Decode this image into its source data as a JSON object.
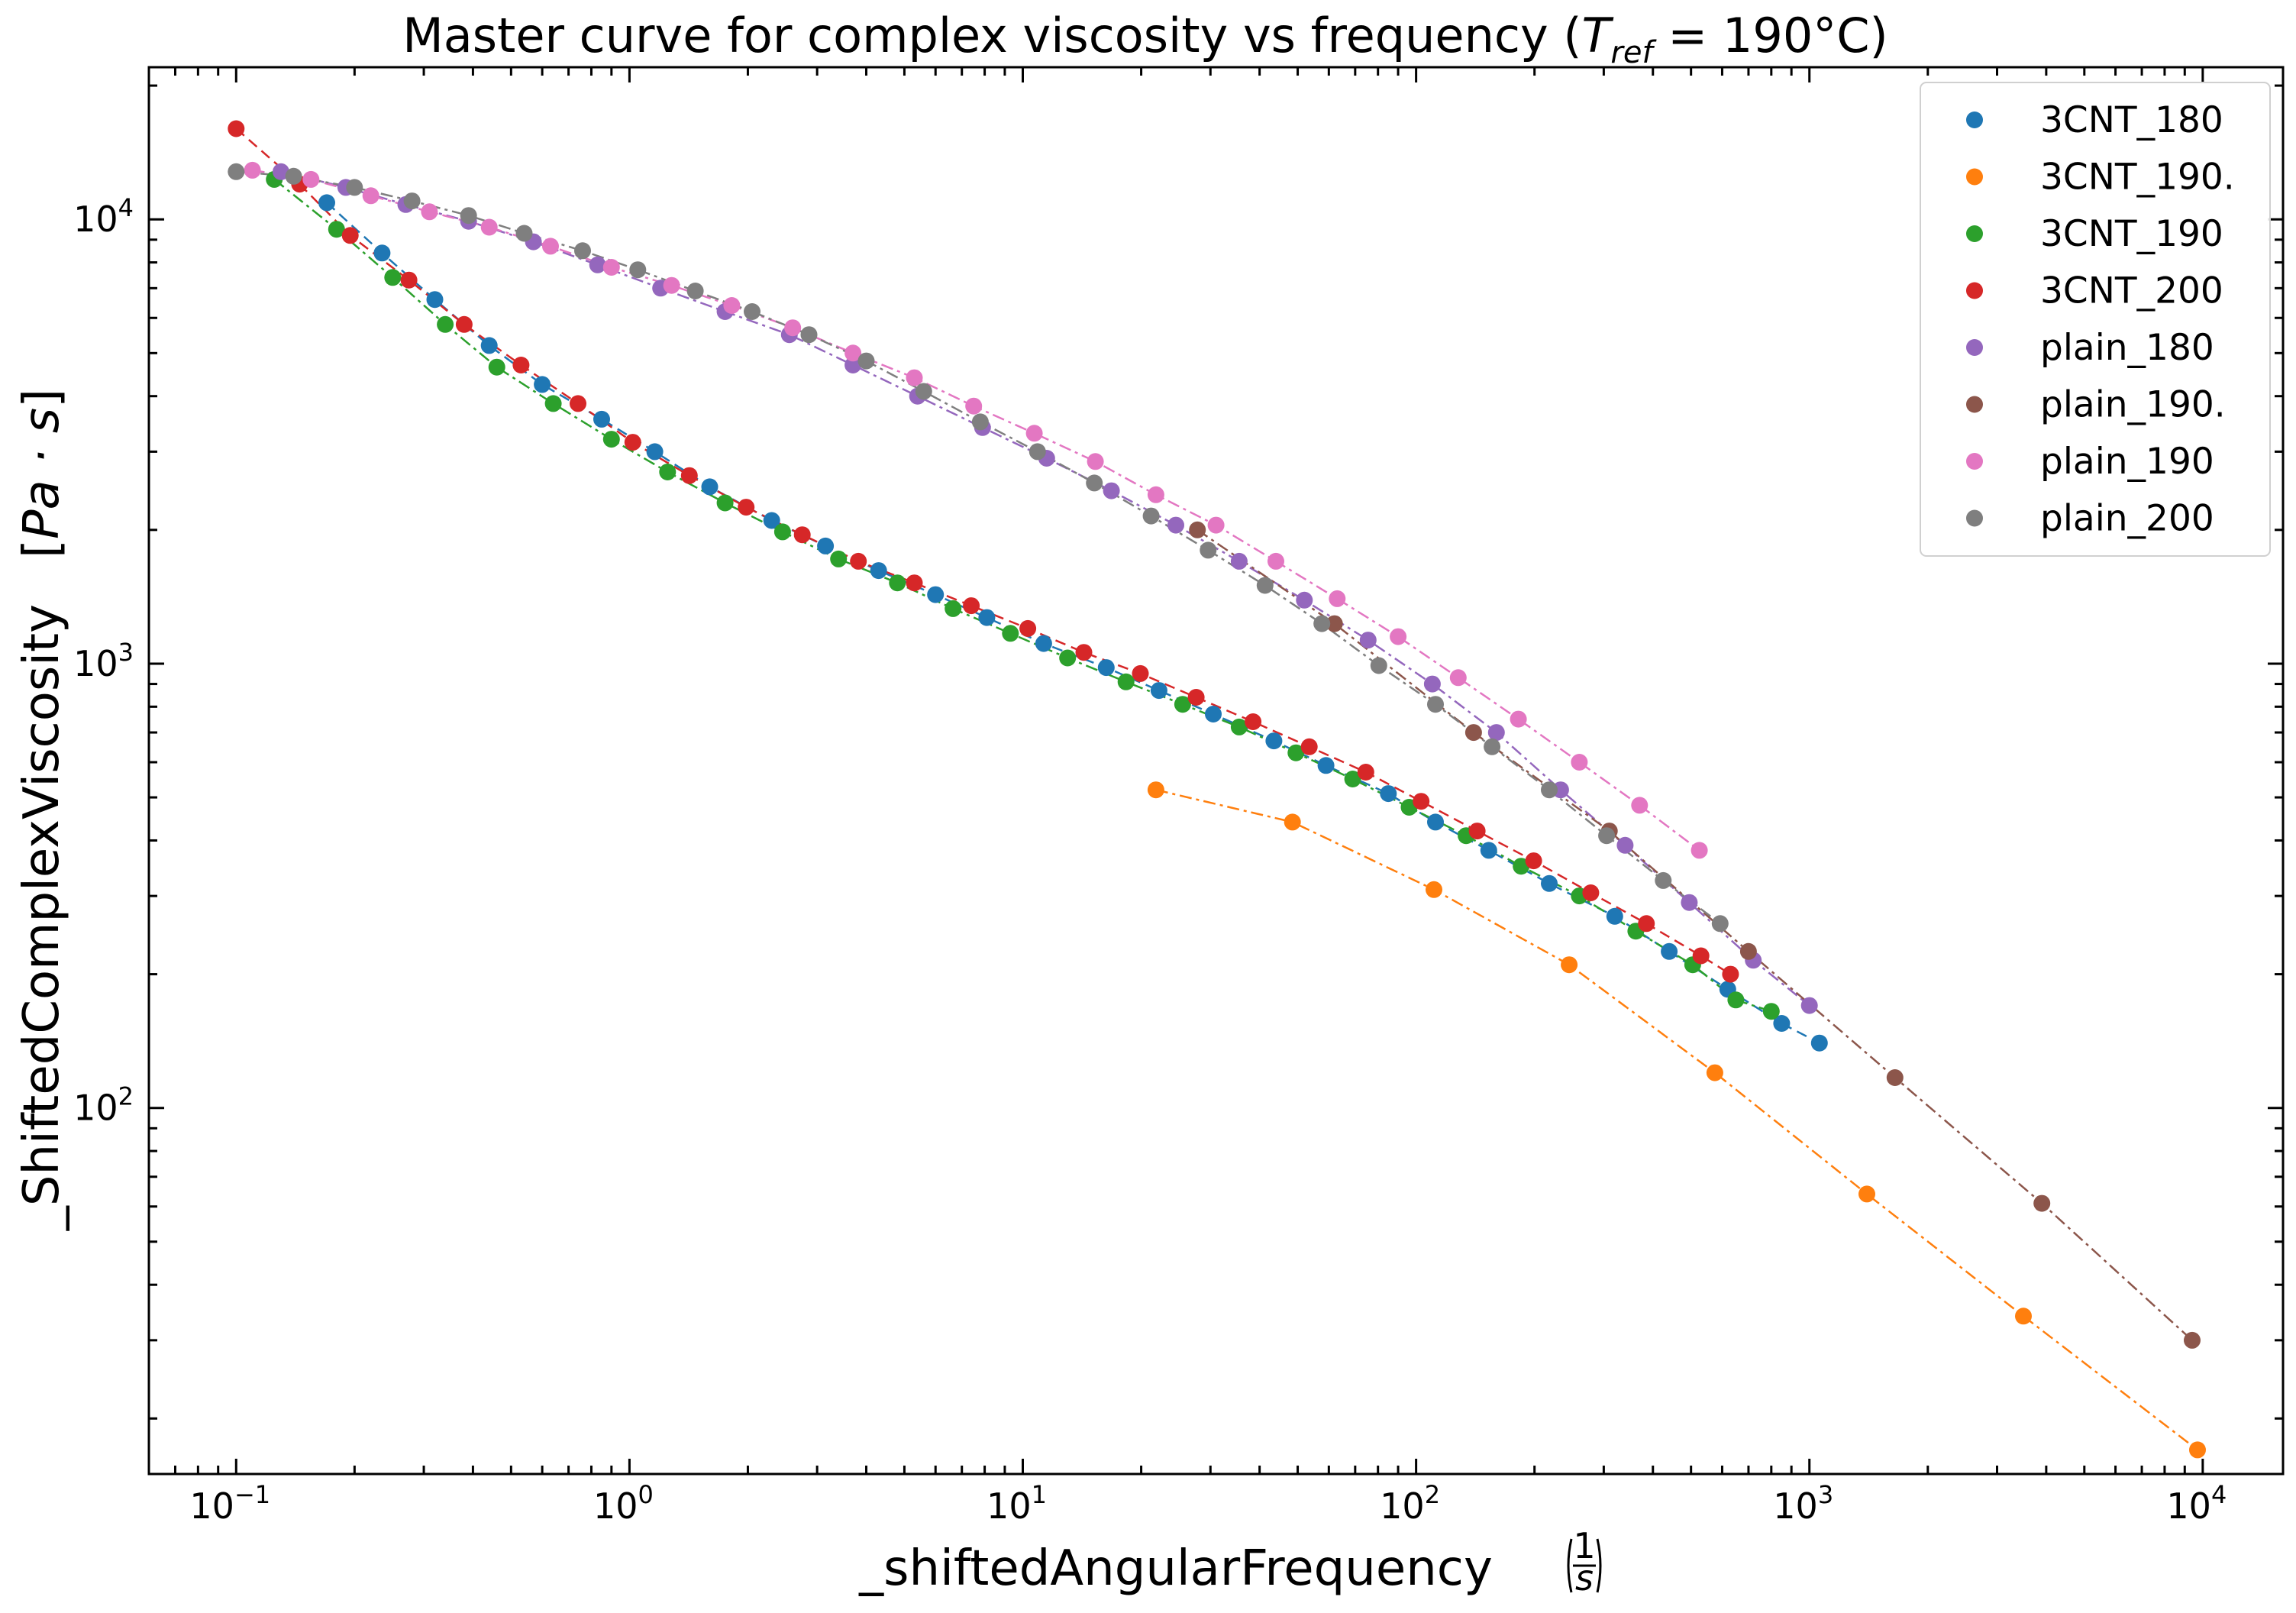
{
  "chart_data": {
    "type": "scatter",
    "title": {
      "main": "Master curve for complex viscosity vs frequency (",
      "var": "T",
      "sub": "ref",
      "rest": " = 190°C)"
    },
    "xlabel": {
      "text": "_shiftedAngularFrequency",
      "unit_num": "1",
      "unit_den": "s"
    },
    "ylabel": {
      "text": "_ShiftedComplexViscosity",
      "unit": "Pa · s"
    },
    "x_scale": "log",
    "y_scale": "log",
    "xlim": [
      0.06,
      16000
    ],
    "ylim": [
      15,
      22000
    ],
    "x_ticks": [
      {
        "base": "10",
        "exp": "−1",
        "value": 0.1
      },
      {
        "base": "10",
        "exp": "0",
        "value": 1
      },
      {
        "base": "10",
        "exp": "1",
        "value": 10
      },
      {
        "base": "10",
        "exp": "2",
        "value": 100
      },
      {
        "base": "10",
        "exp": "3",
        "value": 1000
      },
      {
        "base": "10",
        "exp": "4",
        "value": 10000
      }
    ],
    "y_ticks": [
      {
        "base": "10",
        "exp": "2",
        "value": 100
      },
      {
        "base": "10",
        "exp": "3",
        "value": 1000
      },
      {
        "base": "10",
        "exp": "4",
        "value": 10000
      }
    ],
    "grid": false,
    "legend_position": "top-right",
    "series": [
      {
        "name": "3CNT_180",
        "color": "#1f77b4",
        "line": "dashed",
        "x": [
          0.17,
          0.235,
          0.32,
          0.44,
          0.6,
          0.85,
          1.16,
          1.6,
          2.3,
          3.15,
          4.3,
          6.0,
          8.1,
          11.3,
          16.3,
          22.2,
          30.5,
          43.5,
          59,
          85,
          112,
          153,
          218,
          320,
          440,
          620,
          850,
          1060
        ],
        "y": [
          10900,
          8400,
          6600,
          5200,
          4250,
          3550,
          3000,
          2500,
          2100,
          1840,
          1620,
          1430,
          1270,
          1110,
          980,
          870,
          770,
          670,
          590,
          510,
          440,
          380,
          320,
          270,
          225,
          185,
          155,
          140
        ]
      },
      {
        "name": "3CNT_190.",
        "color": "#ff7f0e",
        "line": "dashdot",
        "x": [
          21.8,
          48.5,
          111,
          245,
          575,
          1400,
          3500,
          9700
        ],
        "y": [
          520,
          440,
          310,
          210,
          120,
          64,
          34,
          17
        ]
      },
      {
        "name": "3CNT_190",
        "color": "#2ca02c",
        "line": "dashdot",
        "x": [
          0.125,
          0.18,
          0.25,
          0.34,
          0.46,
          0.64,
          0.9,
          1.25,
          1.75,
          2.45,
          3.4,
          4.8,
          6.65,
          9.3,
          13,
          18.3,
          25.5,
          35.5,
          49.5,
          69,
          96,
          134,
          185,
          260,
          362,
          505,
          650,
          800
        ],
        "y": [
          12300,
          9500,
          7400,
          5800,
          4650,
          3850,
          3200,
          2700,
          2300,
          1980,
          1720,
          1520,
          1330,
          1170,
          1030,
          910,
          810,
          720,
          630,
          550,
          475,
          410,
          350,
          300,
          250,
          210,
          175,
          165
        ]
      },
      {
        "name": "3CNT_200",
        "color": "#d62728",
        "line": "dashed",
        "x": [
          0.1,
          0.145,
          0.195,
          0.275,
          0.38,
          0.53,
          0.74,
          1.02,
          1.42,
          1.98,
          2.75,
          3.82,
          5.3,
          7.4,
          10.3,
          14.3,
          19.9,
          27.6,
          38.5,
          53.5,
          74.5,
          103,
          143,
          199,
          278,
          385,
          530,
          630
        ],
        "y": [
          16000,
          12000,
          9200,
          7300,
          5800,
          4700,
          3850,
          3150,
          2650,
          2250,
          1950,
          1700,
          1520,
          1350,
          1200,
          1060,
          950,
          840,
          740,
          650,
          570,
          490,
          420,
          360,
          305,
          260,
          220,
          200
        ]
      },
      {
        "name": "plain_180",
        "color": "#9467bd",
        "line": "dashdot",
        "x": [
          0.13,
          0.19,
          0.27,
          0.39,
          0.57,
          0.83,
          1.2,
          1.75,
          2.55,
          3.7,
          5.4,
          7.9,
          11.5,
          16.8,
          24.5,
          35.5,
          52,
          75.5,
          110,
          160,
          233,
          340,
          495,
          720,
          1000
        ],
        "y": [
          12800,
          11800,
          10800,
          9900,
          8900,
          7900,
          7000,
          6200,
          5500,
          4700,
          4000,
          3400,
          2900,
          2450,
          2050,
          1700,
          1390,
          1130,
          900,
          700,
          520,
          390,
          290,
          215,
          170
        ]
      },
      {
        "name": "plain_190.",
        "color": "#8c564b",
        "line": "dashdot",
        "x": [
          27.8,
          62,
          140,
          310,
          700,
          1650,
          3900,
          9400
        ],
        "y": [
          2000,
          1230,
          700,
          420,
          225,
          117,
          61,
          30
        ]
      },
      {
        "name": "plain_190",
        "color": "#e377c2",
        "line": "dashdot",
        "x": [
          0.11,
          0.155,
          0.22,
          0.31,
          0.44,
          0.63,
          0.9,
          1.28,
          1.82,
          2.6,
          3.7,
          5.3,
          7.5,
          10.7,
          15.3,
          21.8,
          31,
          44,
          63,
          90,
          128,
          182,
          260,
          370,
          525
        ],
        "y": [
          12900,
          12300,
          11300,
          10400,
          9600,
          8700,
          7800,
          7100,
          6400,
          5700,
          5000,
          4400,
          3800,
          3300,
          2850,
          2400,
          2050,
          1700,
          1400,
          1150,
          930,
          750,
          600,
          480,
          380
        ]
      },
      {
        "name": "plain_200",
        "color": "#7f7f7f",
        "line": "dashdot",
        "x": [
          0.1,
          0.14,
          0.2,
          0.28,
          0.39,
          0.54,
          0.76,
          1.05,
          1.47,
          2.05,
          2.86,
          4.0,
          5.6,
          7.8,
          10.9,
          15.2,
          21.2,
          29.6,
          41.3,
          57.6,
          80.4,
          112,
          156,
          218,
          305,
          425,
          593
        ],
        "y": [
          12800,
          12500,
          11800,
          11000,
          10200,
          9300,
          8500,
          7700,
          6900,
          6200,
          5500,
          4800,
          4100,
          3500,
          3000,
          2550,
          2150,
          1800,
          1500,
          1230,
          990,
          810,
          650,
          520,
          410,
          325,
          260
        ]
      }
    ]
  }
}
